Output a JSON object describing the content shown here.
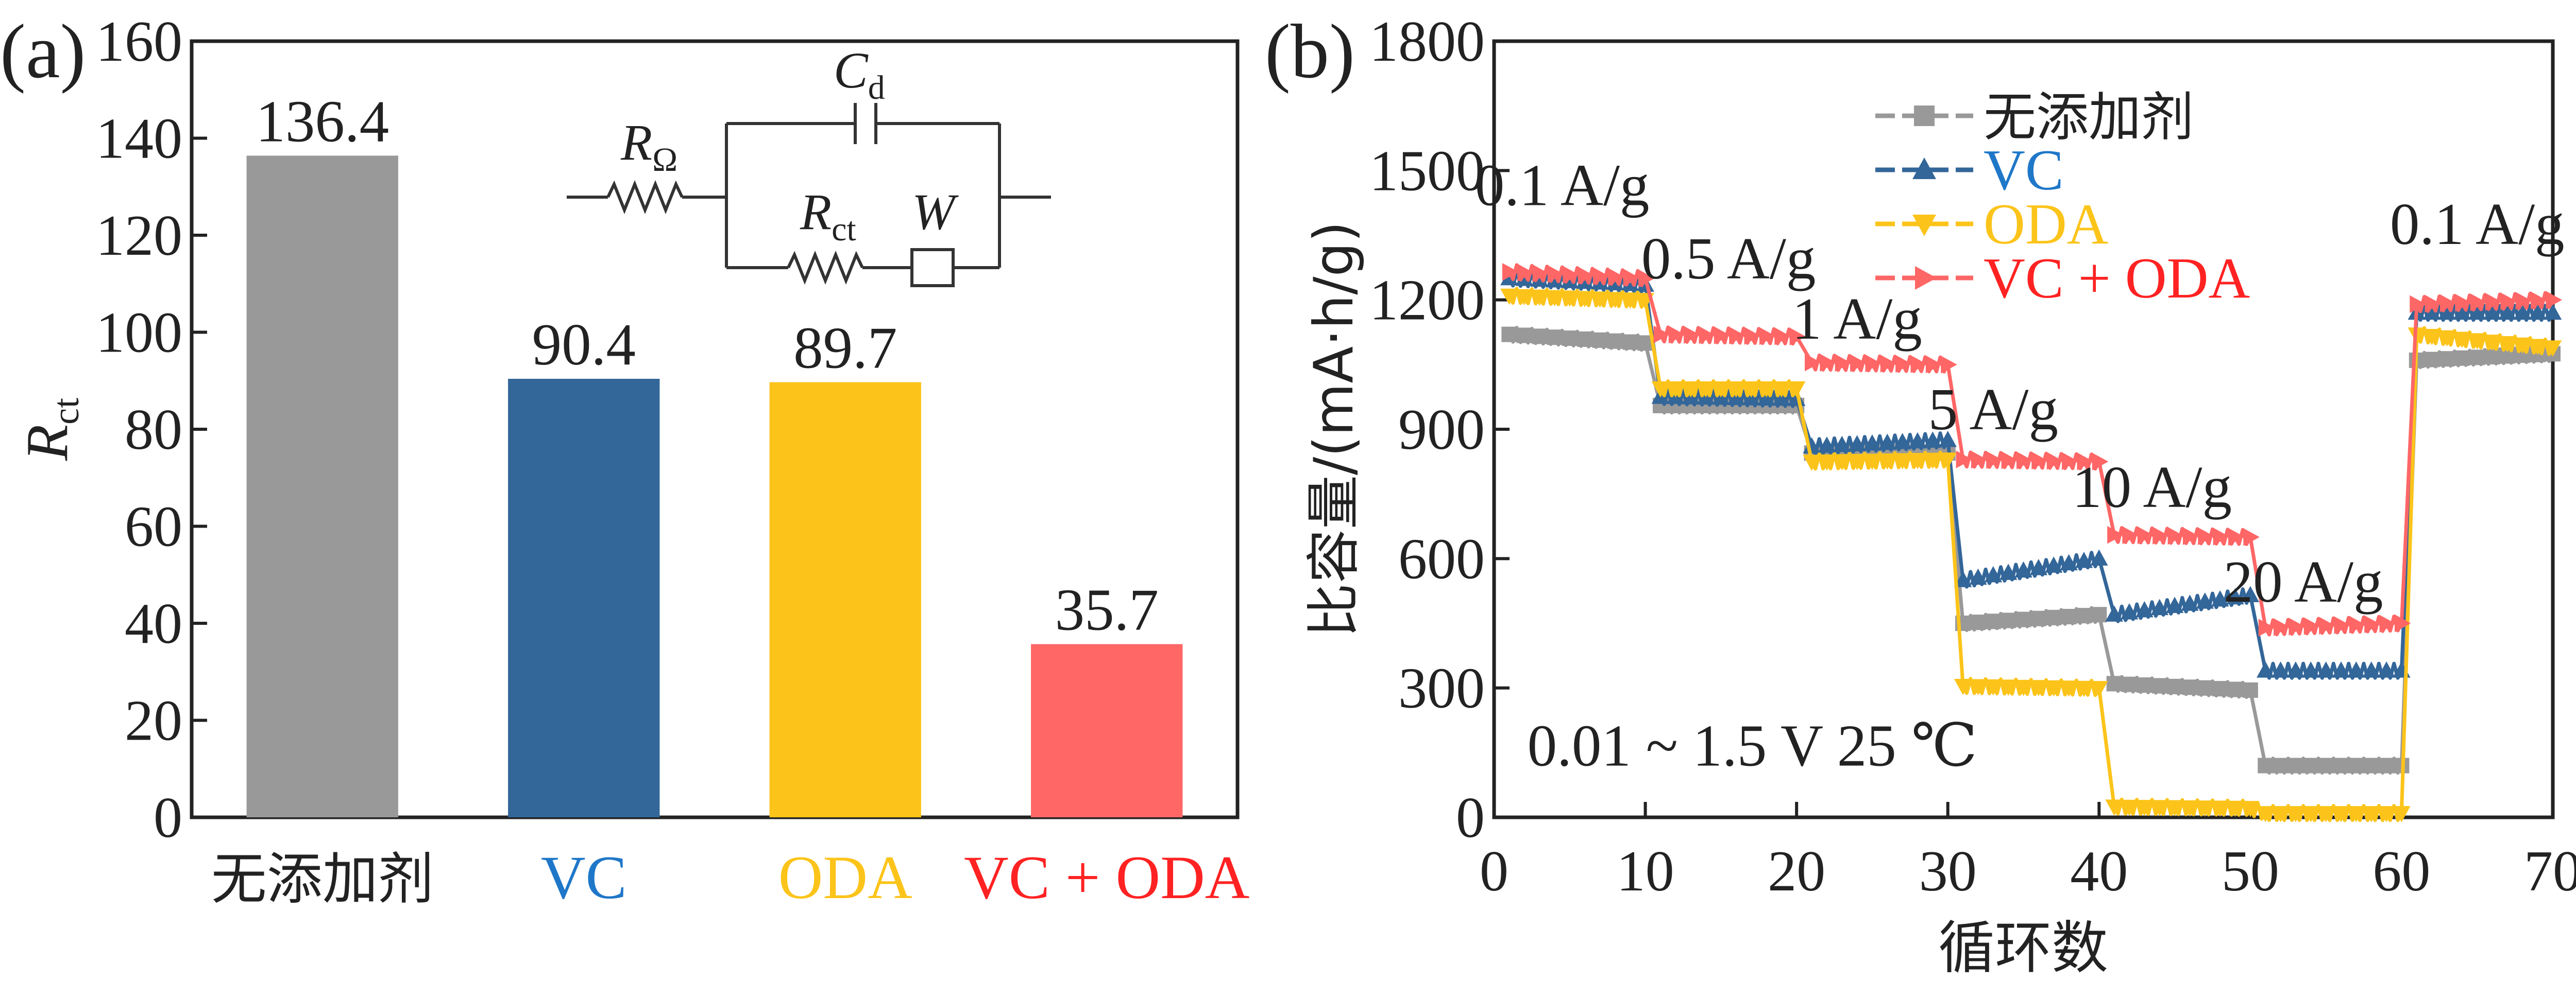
{
  "charts": [
    {
      "panel_label": "(a)",
      "chart_data": {
        "type": "bar",
        "categories": [
          "无添加剂",
          "VC",
          "ODA",
          "VC + ODA"
        ],
        "values": [
          136.4,
          90.4,
          89.7,
          35.7
        ],
        "value_labels": [
          "136.4",
          "90.4",
          "89.7",
          "35.7"
        ],
        "colors": [
          "#999999",
          "#336699",
          "#FCC41A",
          "#FF6666"
        ],
        "category_label_colors": [
          "#222222",
          "#1F77C8",
          "#FCC41A",
          "#FF2222"
        ],
        "ylabel": "R",
        "ylabel_sub": "ct",
        "ylim": [
          0,
          160
        ],
        "yticks": [
          0,
          20,
          40,
          60,
          80,
          100,
          120,
          140,
          160
        ],
        "grid": false,
        "legend": "none"
      },
      "inset": {
        "r_omega": "R",
        "r_omega_sub": "Ω",
        "capacitor": "C",
        "capacitor_sub": "d",
        "r_ct": "R",
        "r_ct_sub": "ct",
        "warburg": "W"
      }
    },
    {
      "panel_label": "(b)",
      "chart_data": {
        "type": "line",
        "xlabel": "循环数",
        "ylabel": "比容量/(mA·h/g)",
        "xlim": [
          0,
          70
        ],
        "ylim": [
          0,
          1800
        ],
        "xticks": [
          0,
          10,
          20,
          30,
          40,
          50,
          60,
          70
        ],
        "yticks": [
          0,
          300,
          600,
          900,
          1200,
          1500,
          1800
        ],
        "grid": false,
        "legend": "top-center",
        "rate_labels": [
          {
            "text": "0.1 A/g",
            "x": 4.5,
            "y": 1420
          },
          {
            "text": "0.5 A/g",
            "x": 15.5,
            "y": 1250
          },
          {
            "text": "1 A/g",
            "x": 24.0,
            "y": 1110
          },
          {
            "text": "5 A/g",
            "x": 33.0,
            "y": 900
          },
          {
            "text": "10 A/g",
            "x": 43.5,
            "y": 720
          },
          {
            "text": "20 A/g",
            "x": 53.5,
            "y": 500
          },
          {
            "text": "0.1 A/g",
            "x": 65.0,
            "y": 1330
          }
        ],
        "annotation": {
          "text": "0.01 ~ 1.5 V  25 ℃",
          "x": 2.2,
          "y": 120
        },
        "series": [
          {
            "name": "无添加剂",
            "color": "#999999",
            "marker": "square",
            "segments": [
              {
                "x0": 1,
                "x1": 10,
                "y0": 1120,
                "y1": 1100
              },
              {
                "x0": 10,
                "x1": 20,
                "y0": 955,
                "y1": 955
              },
              {
                "x0": 20,
                "x1": 30,
                "y0": 845,
                "y1": 845
              },
              {
                "x0": 30,
                "x1": 40,
                "y0": 450,
                "y1": 470
              },
              {
                "x0": 40,
                "x1": 50,
                "y0": 310,
                "y1": 295
              },
              {
                "x0": 50,
                "x1": 60,
                "y0": 120,
                "y1": 120
              },
              {
                "x0": 60,
                "x1": 70,
                "y0": 1060,
                "y1": 1075
              }
            ]
          },
          {
            "name": "VC",
            "color": "#336699",
            "label_color": "#1F77C8",
            "marker": "triangle-up",
            "segments": [
              {
                "x0": 1,
                "x1": 10,
                "y0": 1250,
                "y1": 1235
              },
              {
                "x0": 10,
                "x1": 20,
                "y0": 975,
                "y1": 970
              },
              {
                "x0": 20,
                "x1": 30,
                "y0": 860,
                "y1": 875
              },
              {
                "x0": 30,
                "x1": 40,
                "y0": 550,
                "y1": 600
              },
              {
                "x0": 40,
                "x1": 50,
                "y0": 470,
                "y1": 515
              },
              {
                "x0": 50,
                "x1": 60,
                "y0": 340,
                "y1": 340
              },
              {
                "x0": 60,
                "x1": 70,
                "y0": 1170,
                "y1": 1170
              }
            ]
          },
          {
            "name": "ODA",
            "color": "#FCC41A",
            "label_color": "#FCC41A",
            "marker": "triangle-down",
            "segments": [
              {
                "x0": 1,
                "x1": 10,
                "y0": 1210,
                "y1": 1200
              },
              {
                "x0": 10,
                "x1": 20,
                "y0": 995,
                "y1": 995
              },
              {
                "x0": 20,
                "x1": 30,
                "y0": 825,
                "y1": 830
              },
              {
                "x0": 30,
                "x1": 40,
                "y0": 305,
                "y1": 300
              },
              {
                "x0": 40,
                "x1": 50,
                "y0": 25,
                "y1": 22
              },
              {
                "x0": 50,
                "x1": 60,
                "y0": 10,
                "y1": 10
              },
              {
                "x0": 60,
                "x1": 70,
                "y0": 1120,
                "y1": 1090
              }
            ]
          },
          {
            "name": "VC + ODA",
            "color": "#FF6666",
            "label_color": "#FF2222",
            "marker": "triangle-right",
            "segments": [
              {
                "x0": 1,
                "x1": 10,
                "y0": 1265,
                "y1": 1250
              },
              {
                "x0": 10,
                "x1": 20,
                "y0": 1120,
                "y1": 1115
              },
              {
                "x0": 20,
                "x1": 30,
                "y0": 1055,
                "y1": 1050
              },
              {
                "x0": 30,
                "x1": 40,
                "y0": 830,
                "y1": 825
              },
              {
                "x0": 40,
                "x1": 50,
                "y0": 655,
                "y1": 650
              },
              {
                "x0": 50,
                "x1": 60,
                "y0": 440,
                "y1": 450
              },
              {
                "x0": 60,
                "x1": 70,
                "y0": 1190,
                "y1": 1200
              }
            ]
          }
        ]
      }
    }
  ]
}
